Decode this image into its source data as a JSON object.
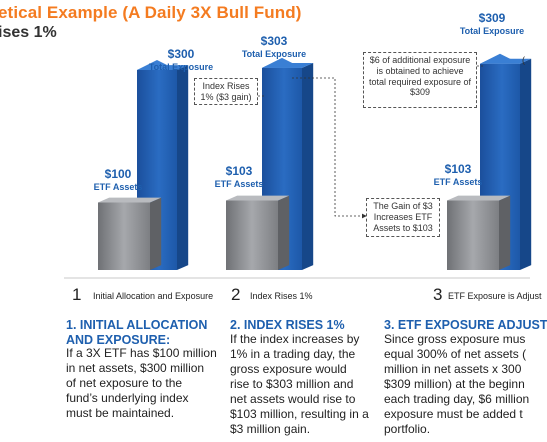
{
  "header": {
    "title": "etical Example (A Daily 3X Bull Fund)",
    "subtitle": "ises 1%"
  },
  "colors": {
    "accent": "#f47b20",
    "blue": "#1e5fae",
    "gray": "#8c8e92"
  },
  "stages": [
    {
      "assets_value": "$100",
      "assets_label": "ETF Assets",
      "exposure_value": "$300",
      "exposure_label": "Total Exposure",
      "step_number": "1",
      "step_label": "Initial Allocation and Exposure"
    },
    {
      "assets_value": "$103",
      "assets_label": "ETF Assets",
      "exposure_value": "$303",
      "exposure_label": "Total Exposure",
      "step_number": "2",
      "step_label": "Index Rises 1%"
    },
    {
      "assets_value": "$103",
      "assets_label": "ETF Assets",
      "exposure_value": "$309",
      "exposure_label": "Total Exposure",
      "step_number": "3",
      "step_label": "ETF Exposure is Adjust"
    }
  ],
  "chart_data": {
    "type": "bar",
    "categories": [
      "1",
      "2",
      "3"
    ],
    "series": [
      {
        "name": "ETF Assets",
        "values": [
          100,
          103,
          103
        ]
      },
      {
        "name": "Total Exposure",
        "values": [
          300,
          303,
          309
        ]
      }
    ]
  },
  "notes": {
    "index_rises": "Index Rises 1% ($3 gain)",
    "gain": "The Gain of $3 Increases ETF Assets to $103",
    "additional": "$6 of additional exposure is obtained to achieve total required exposure of $309",
    "right_edge": "("
  },
  "sections": [
    {
      "heading": [
        "1. INITIAL ALLOCATION",
        "AND EXPOSURE:"
      ],
      "lines": [
        "If a 3X ETF has $100 million",
        "in net assets, $300 million",
        "of net exposure to the",
        "fund’s underlying index",
        "must be maintained."
      ]
    },
    {
      "heading": [
        "2. INDEX RISES 1%"
      ],
      "lines": [
        "If the index increases by",
        "1% in a trading day, the",
        "gross exposure would",
        "rise to $303 million and",
        "net assets would rise to",
        "$103 million, resulting in a",
        "$3 million gain."
      ]
    },
    {
      "heading": [
        "3. ETF EXPOSURE ADJUST"
      ],
      "lines": [
        "Since gross exposure mus",
        "equal 300% of net assets (",
        "million in net assets x 300",
        "$309 million) at the beginn",
        "each trading day, $6 million",
        "exposure must be added t",
        "portfolio."
      ]
    }
  ]
}
